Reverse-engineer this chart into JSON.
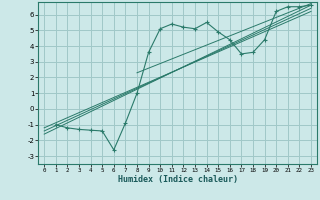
{
  "title": "",
  "xlabel": "Humidex (Indice chaleur)",
  "ylabel": "",
  "bg_color": "#cce8e8",
  "grid_color": "#a0c8c8",
  "line_color": "#2a7a6a",
  "xlim": [
    -0.5,
    23.5
  ],
  "ylim": [
    -3.5,
    6.8
  ],
  "xticks": [
    0,
    1,
    2,
    3,
    4,
    5,
    6,
    7,
    8,
    9,
    10,
    11,
    12,
    13,
    14,
    15,
    16,
    17,
    18,
    19,
    20,
    21,
    22,
    23
  ],
  "yticks": [
    -3,
    -2,
    -1,
    0,
    1,
    2,
    3,
    4,
    5,
    6
  ],
  "main_line": {
    "x": [
      1,
      2,
      3,
      4,
      5,
      6,
      7,
      8,
      9,
      10,
      11,
      12,
      13,
      14,
      15,
      16,
      17,
      18,
      19,
      20,
      21,
      22,
      23
    ],
    "y": [
      -1.0,
      -1.2,
      -1.3,
      -1.35,
      -1.4,
      -2.6,
      -0.9,
      1.0,
      3.6,
      5.1,
      5.4,
      5.2,
      5.1,
      5.5,
      4.9,
      4.4,
      3.5,
      3.6,
      4.4,
      6.2,
      6.5,
      6.5,
      6.6
    ]
  },
  "reg_lines": [
    {
      "x": [
        0,
        23
      ],
      "y": [
        -1.6,
        6.6
      ]
    },
    {
      "x": [
        0,
        23
      ],
      "y": [
        -1.4,
        6.4
      ]
    },
    {
      "x": [
        0,
        23
      ],
      "y": [
        -1.2,
        6.2
      ]
    },
    {
      "x": [
        8,
        23
      ],
      "y": [
        2.3,
        6.7
      ]
    }
  ]
}
